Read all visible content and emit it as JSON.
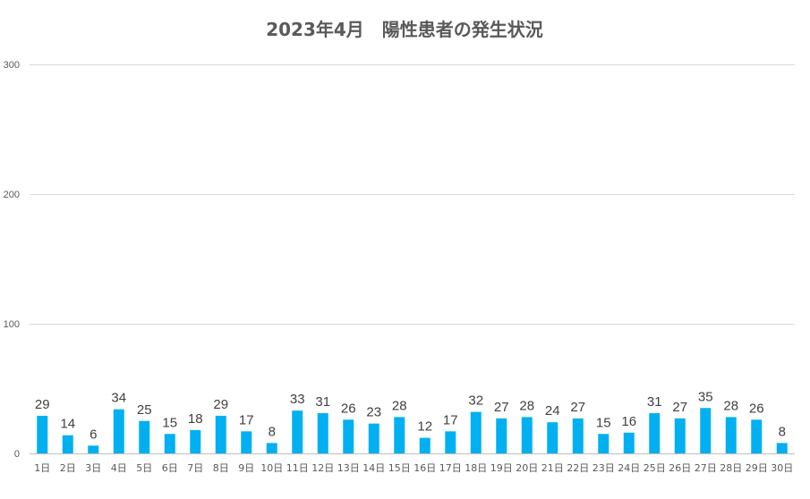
{
  "chart_data": {
    "type": "bar",
    "title": "2023年4月　陽性患者の発生状況",
    "xlabel": "",
    "ylabel": "",
    "ylim": [
      0,
      300
    ],
    "yticks": [
      0,
      100,
      200,
      300
    ],
    "grid": true,
    "legend": "none",
    "color": "#00b0f0",
    "categories": [
      "1日",
      "2日",
      "3日",
      "4日",
      "5日",
      "6日",
      "7日",
      "8日",
      "9日",
      "10日",
      "11日",
      "12日",
      "13日",
      "14日",
      "15日",
      "16日",
      "17日",
      "18日",
      "19日",
      "20日",
      "21日",
      "22日",
      "23日",
      "24日",
      "25日",
      "26日",
      "27日",
      "28日",
      "29日",
      "30日"
    ],
    "values": [
      29,
      14,
      6,
      34,
      25,
      15,
      18,
      29,
      17,
      8,
      33,
      31,
      26,
      23,
      28,
      12,
      17,
      32,
      27,
      28,
      24,
      27,
      15,
      16,
      31,
      27,
      35,
      28,
      26,
      8
    ]
  }
}
